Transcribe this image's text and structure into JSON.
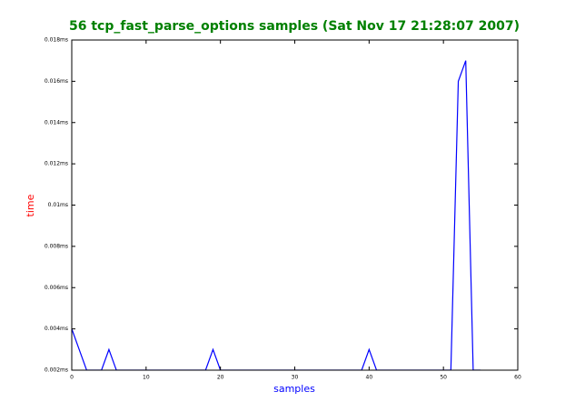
{
  "chart_data": {
    "type": "line",
    "title": "56 tcp_fast_parse_options samples (Sat Nov 17 21:28:07 2007)",
    "x_label": "samples",
    "y_label": "time",
    "x": [
      0,
      1,
      2,
      3,
      4,
      5,
      6,
      7,
      8,
      9,
      10,
      11,
      12,
      13,
      14,
      15,
      16,
      17,
      18,
      19,
      20,
      21,
      22,
      23,
      24,
      25,
      26,
      27,
      28,
      29,
      30,
      31,
      32,
      33,
      34,
      35,
      36,
      37,
      38,
      39,
      40,
      41,
      42,
      43,
      44,
      45,
      46,
      47,
      48,
      49,
      50,
      51,
      52,
      53,
      54,
      55
    ],
    "series": [
      {
        "color": "#0000ff",
        "values": [
          0.004,
          0.003,
          0.002,
          0.002,
          0.002,
          0.003,
          0.002,
          0.002,
          0.002,
          0.002,
          0.002,
          0.002,
          0.002,
          0.002,
          0.002,
          0.002,
          0.002,
          0.002,
          0.002,
          0.003,
          0.002,
          0.002,
          0.002,
          0.002,
          0.002,
          0.002,
          0.002,
          0.002,
          0.002,
          0.002,
          0.002,
          0.002,
          0.002,
          0.002,
          0.002,
          0.002,
          0.002,
          0.002,
          0.002,
          0.002,
          0.003,
          0.002,
          0.002,
          0.002,
          0.002,
          0.002,
          0.002,
          0.002,
          0.002,
          0.002,
          0.002,
          0.002,
          0.016,
          0.017,
          0.002,
          0.002
        ]
      }
    ],
    "xlim": [
      0,
      60
    ],
    "xticks": [
      0,
      10,
      20,
      30,
      40,
      50,
      60
    ],
    "ylim": [
      0.002,
      0.018
    ],
    "yticks": [
      {
        "value": 0.002,
        "label": "0.002ms"
      },
      {
        "value": 0.004,
        "label": "0.004ms"
      },
      {
        "value": 0.006,
        "label": "0.006ms"
      },
      {
        "value": 0.008,
        "label": "0.008ms"
      },
      {
        "value": 0.01,
        "label": "0.01ms"
      },
      {
        "value": 0.012,
        "label": "0.012ms"
      },
      {
        "value": 0.014,
        "label": "0.014ms"
      },
      {
        "value": 0.016,
        "label": "0.016ms"
      },
      {
        "value": 0.018,
        "label": "0.018ms"
      }
    ]
  }
}
